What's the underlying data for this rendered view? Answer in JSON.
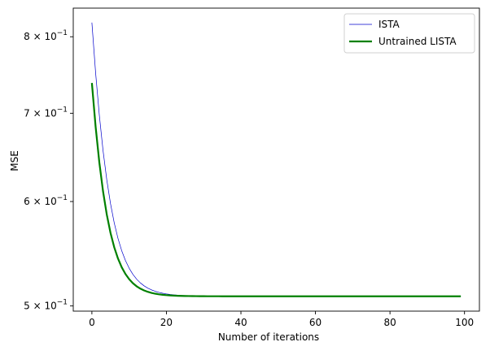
{
  "chart_data": {
    "type": "line",
    "title": "",
    "xlabel": "Number of iterations",
    "ylabel": "MSE",
    "yscale": "log",
    "xlim": [
      -5,
      104
    ],
    "ylim": [
      0.4955,
      0.841
    ],
    "grid": false,
    "legend_position": "top-right",
    "x_ticks": [
      {
        "value": 0,
        "label": "0"
      },
      {
        "value": 20,
        "label": "20"
      },
      {
        "value": 40,
        "label": "40"
      },
      {
        "value": 60,
        "label": "60"
      },
      {
        "value": 80,
        "label": "80"
      },
      {
        "value": 100,
        "label": "100"
      }
    ],
    "y_ticks": [
      {
        "value": 0.5,
        "base": "5",
        "exp": "−1"
      },
      {
        "value": 0.6,
        "base": "6",
        "exp": "−1"
      },
      {
        "value": 0.7,
        "base": "7",
        "exp": "−1"
      },
      {
        "value": 0.8,
        "base": "8",
        "exp": "−1"
      }
    ],
    "series": [
      {
        "name": "ISTA",
        "color": "#0000cc",
        "style": "thin",
        "asymptote": 0.5085,
        "start": 0.82,
        "decay_rate": 0.25,
        "points": 100
      },
      {
        "name": "Untrained LISTA",
        "color": "#008000",
        "style": "thick",
        "asymptote": 0.5085,
        "start": 0.738,
        "decay_rate": 0.27,
        "points": 100
      }
    ]
  }
}
